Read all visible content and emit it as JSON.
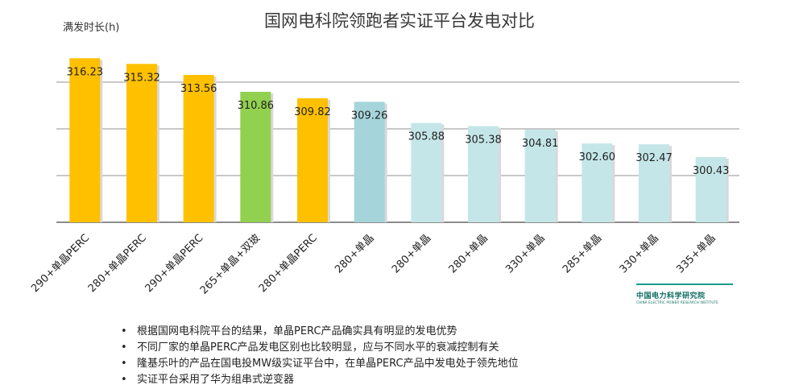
{
  "chart_data": {
    "type": "bar",
    "title": "国网电科院领跑者实证平台发电对比",
    "ylabel": "满发时长(h)",
    "xlabel": "",
    "ylim": [
      290,
      320
    ],
    "grid": true,
    "categories": [
      "290+单晶PERC",
      "280+单晶PERC",
      "290+单晶PERC",
      "265+单晶+双玻",
      "280+单晶PERC",
      "280+单晶",
      "280+单晶",
      "280+单晶",
      "330+单晶",
      "285+单晶",
      "330+单晶",
      "335+单晶"
    ],
    "values": [
      316.23,
      315.32,
      313.56,
      310.86,
      309.82,
      309.26,
      305.88,
      305.38,
      304.81,
      302.6,
      302.47,
      300.43
    ],
    "value_labels": [
      "316.23",
      "315.32",
      "313.56",
      "310.86",
      "309.82",
      "309.26",
      "305.88",
      "305.38",
      "304.81",
      "302.60",
      "302.47",
      "300.43"
    ],
    "bar_colors": [
      "#FFC000",
      "#FFC000",
      "#FFC000",
      "#92D050",
      "#FFC000",
      "#A5D5DA",
      "#C4E6E8",
      "#C4E6E8",
      "#C4E6E8",
      "#C4E6E8",
      "#C4E6E8",
      "#C4E6E8"
    ]
  },
  "logo": {
    "name_cn": "中国电力科学研究院",
    "name_en": "CHINA ELECTRIC POWER RESEARCH INSTITUTE"
  },
  "notes": [
    "根据国网电科院平台的结果，单晶PERC产品确实具有明显的发电优势",
    "不同厂家的单晶PERC产品发电区别也比较明显，应与不同水平的衰减控制有关",
    "隆基乐叶的产品在国电投MW级实证平台中，在单晶PERC产品中发电处于领先地位",
    "实证平台采用了华为组串式逆变器"
  ]
}
